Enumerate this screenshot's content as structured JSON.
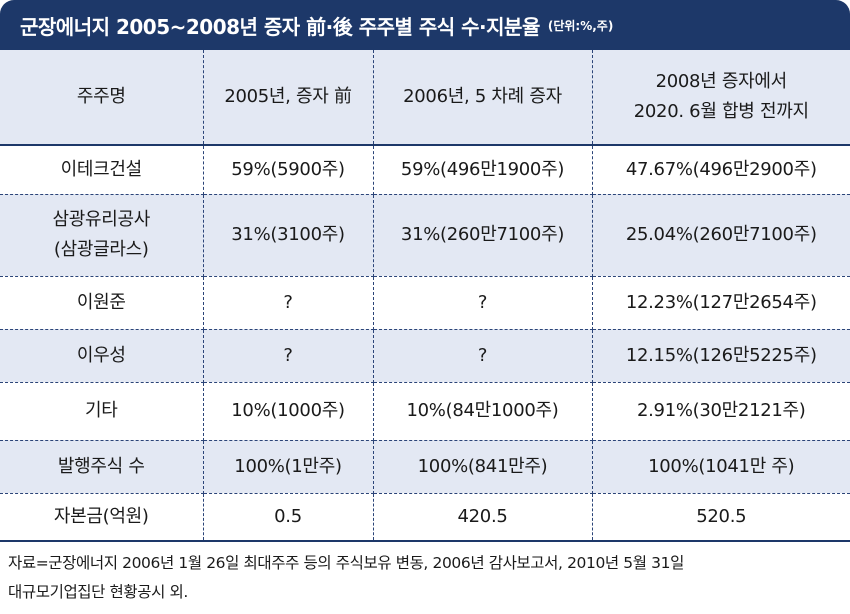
{
  "title": {
    "main": "군장에너지 2005~2008년 증자 前·後 주주별 주식 수·지분율",
    "unit": "(단위:%,주)"
  },
  "header": {
    "col0": "주주명",
    "col1": "2005년, 증자 前",
    "col2": "2006년, 5 차례 증자",
    "col3_line1": "2008년 증자에서",
    "col3_line2": "2020. 6월 합병 전까지"
  },
  "rows": [
    {
      "name_line1": "이테크건설",
      "name_line2": "",
      "c2005": "59%(5900주)",
      "c2006": "59%(496만1900주)",
      "c2008": "47.67%(496만2900주)"
    },
    {
      "name_line1": "삼광유리공사",
      "name_line2": "(삼광글라스)",
      "c2005": "31%(3100주)",
      "c2006": "31%(260만7100주)",
      "c2008": "25.04%(260만7100주)"
    },
    {
      "name_line1": "이원준",
      "name_line2": "",
      "c2005": "?",
      "c2006": "?",
      "c2008": "12.23%(127만2654주)"
    },
    {
      "name_line1": "이우성",
      "name_line2": "",
      "c2005": "?",
      "c2006": "?",
      "c2008": "12.15%(126만5225주)"
    },
    {
      "name_line1": "기타",
      "name_line2": "",
      "c2005": "10%(1000주)",
      "c2006": "10%(84만1000주)",
      "c2008": "2.91%(30만2121주)"
    },
    {
      "name_line1": "발행주식 수",
      "name_line2": "",
      "c2005": "100%(1만주)",
      "c2006": "100%(841만주)",
      "c2008": "100%(1041만 주)"
    },
    {
      "name_line1": "자본금(억원)",
      "name_line2": "",
      "c2005": "0.5",
      "c2006": "420.5",
      "c2008": "520.5"
    }
  ],
  "footnote": {
    "line1": "자료=군장에너지 2006년 1월 26일 최대주주 등의 주식보유 변동, 2006년 감사보고서, 2010년 5월 31일",
    "line2": "대규모기업집단 현황공시 외."
  },
  "colors": {
    "title_bg": "#1d3869",
    "shaded_row": "#e3e8f3",
    "grid_line": "#2b4478"
  }
}
